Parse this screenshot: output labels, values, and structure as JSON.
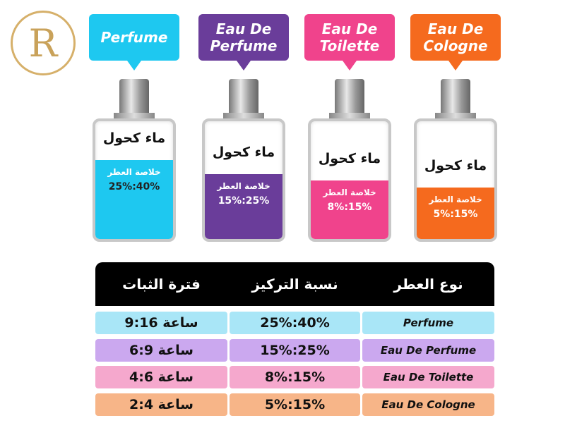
{
  "logo": "R",
  "perfumes": [
    {
      "label": "Perfume",
      "color": "#1ec8f0",
      "bottle_text": "ماء كحول",
      "essence_label": "خلاصة العطر",
      "concentration": "25%:40%"
    },
    {
      "label": "Eau De Perfume",
      "color": "#6a3d9a",
      "bottle_text": "ماء كحول",
      "essence_label": "خلاصة العطر",
      "concentration": "15%:25%"
    },
    {
      "label": "Eau De Toilette",
      "color": "#f0438c",
      "bottle_text": "ماء كحول",
      "essence_label": "خلاصة العطر",
      "concentration": "8%:15%"
    },
    {
      "label": "Eau De Cologne",
      "color": "#f56a1e",
      "bottle_text": "ماء كحول",
      "essence_label": "خلاصة العطر",
      "concentration": "5%:15%"
    }
  ],
  "table": {
    "headers": [
      "فترة الثبات",
      "نسبة التركيز",
      "نوع العطر"
    ],
    "rows": [
      [
        "ساعة 9:16",
        "25%:40%",
        "Perfume"
      ],
      [
        "ساعة 6:9",
        "15%:25%",
        "Eau De Perfume"
      ],
      [
        "ساعة 4:6",
        "8%:15%",
        "Eau De Toilette"
      ],
      [
        "ساعة 2:4",
        "5%:15%",
        "Eau De Cologne"
      ]
    ],
    "row_colors": [
      "#a9e6f7",
      "#cba8ef",
      "#f5a8cd",
      "#f7b588"
    ]
  }
}
